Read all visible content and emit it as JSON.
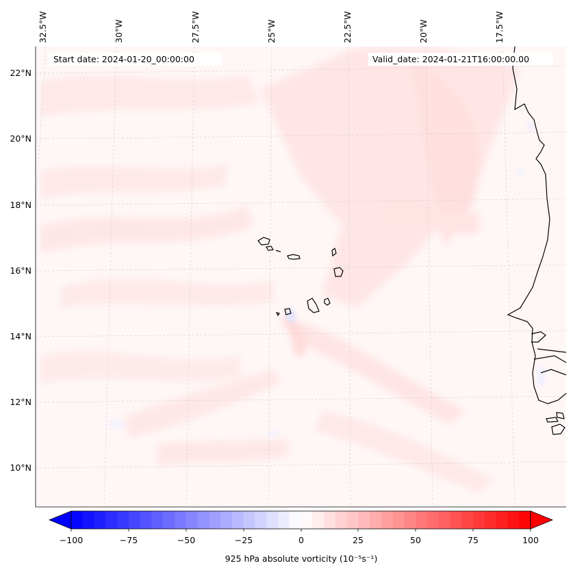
{
  "map": {
    "start_label": "Start date: 2024-01-20_00:00:00",
    "valid_label": "Valid_date: 2024-01-21T16:00:00.00",
    "lon_labels": [
      "32.5°W",
      "30°W",
      "27.5°W",
      "25°W",
      "22.5°W",
      "20°W",
      "17.5°W"
    ],
    "lat_labels": [
      "22°N",
      "20°N",
      "18°N",
      "16°N",
      "14°N",
      "12°N",
      "10°N"
    ],
    "features": [
      "Cabo Verde islands",
      "West African coastline"
    ]
  },
  "colorbar": {
    "label": "925 hPa absolute vorticity (10⁻⁵s⁻¹)",
    "ticks": [
      "−100",
      "−75",
      "−50",
      "−25",
      "0",
      "25",
      "50",
      "75",
      "100"
    ],
    "min": -100,
    "max": 100,
    "levels": 40,
    "colormap": "bwr",
    "colors": {
      "low": "#0000ff",
      "mid": "#ffffff",
      "high": "#ff0000"
    }
  },
  "colors": {
    "background_field": "#fff6f6",
    "weak_positive": "#ffe2e2",
    "coast": "#000000",
    "grid": "#cccccc"
  }
}
